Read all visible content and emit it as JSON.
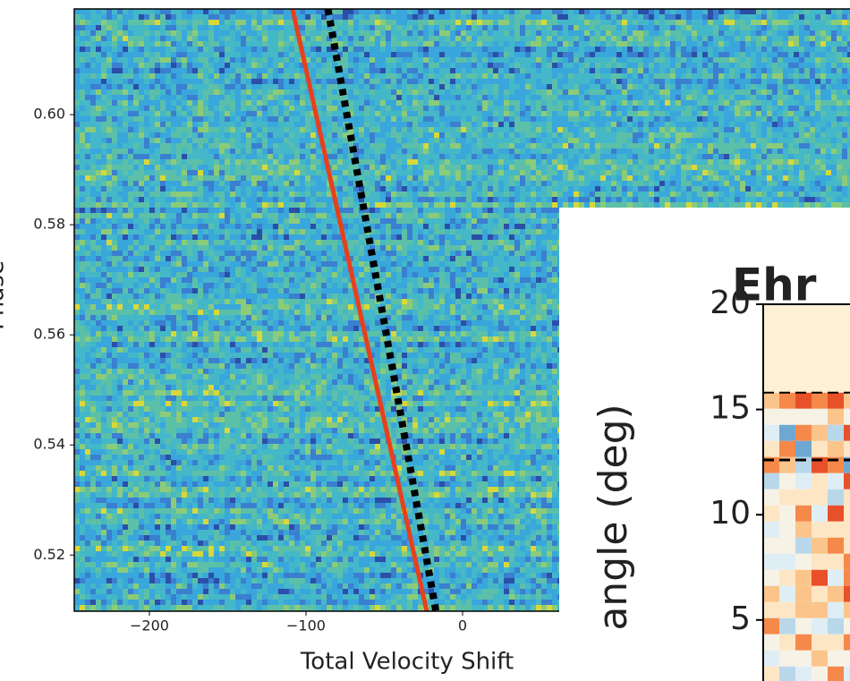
{
  "chart_data": [
    {
      "type": "heatmap",
      "xlabel": "Total Velocity Shift",
      "ylabel": "Phase",
      "xlim": [
        -248,
        250
      ],
      "ylim": [
        0.5098,
        0.6192
      ],
      "xticks": [
        {
          "value": -200,
          "label": "−200"
        },
        {
          "value": -100,
          "label": "−100"
        },
        0
      ],
      "yticks": [
        0.52,
        0.54,
        0.56,
        0.58,
        {
          "value": 0.6,
          "label": "0.60"
        }
      ],
      "lines": [
        {
          "color": "#e8401c",
          "style": "solid",
          "x": [
            -108.6,
            -22.9
          ],
          "y": [
            0.6192,
            0.5098
          ]
        },
        {
          "color": "#000000",
          "style": "dotted",
          "x": [
            -86,
            -17
          ],
          "y": [
            0.6192,
            0.5098
          ]
        }
      ]
    },
    {
      "type": "heatmap",
      "title": "Ehr",
      "ylabel": "angle (deg)",
      "ylim": [
        2.1,
        20
      ],
      "yticks": [
        5,
        10,
        15,
        20
      ],
      "hlines": [
        15.8,
        12.6
      ],
      "hline_color": "#000000"
    }
  ]
}
